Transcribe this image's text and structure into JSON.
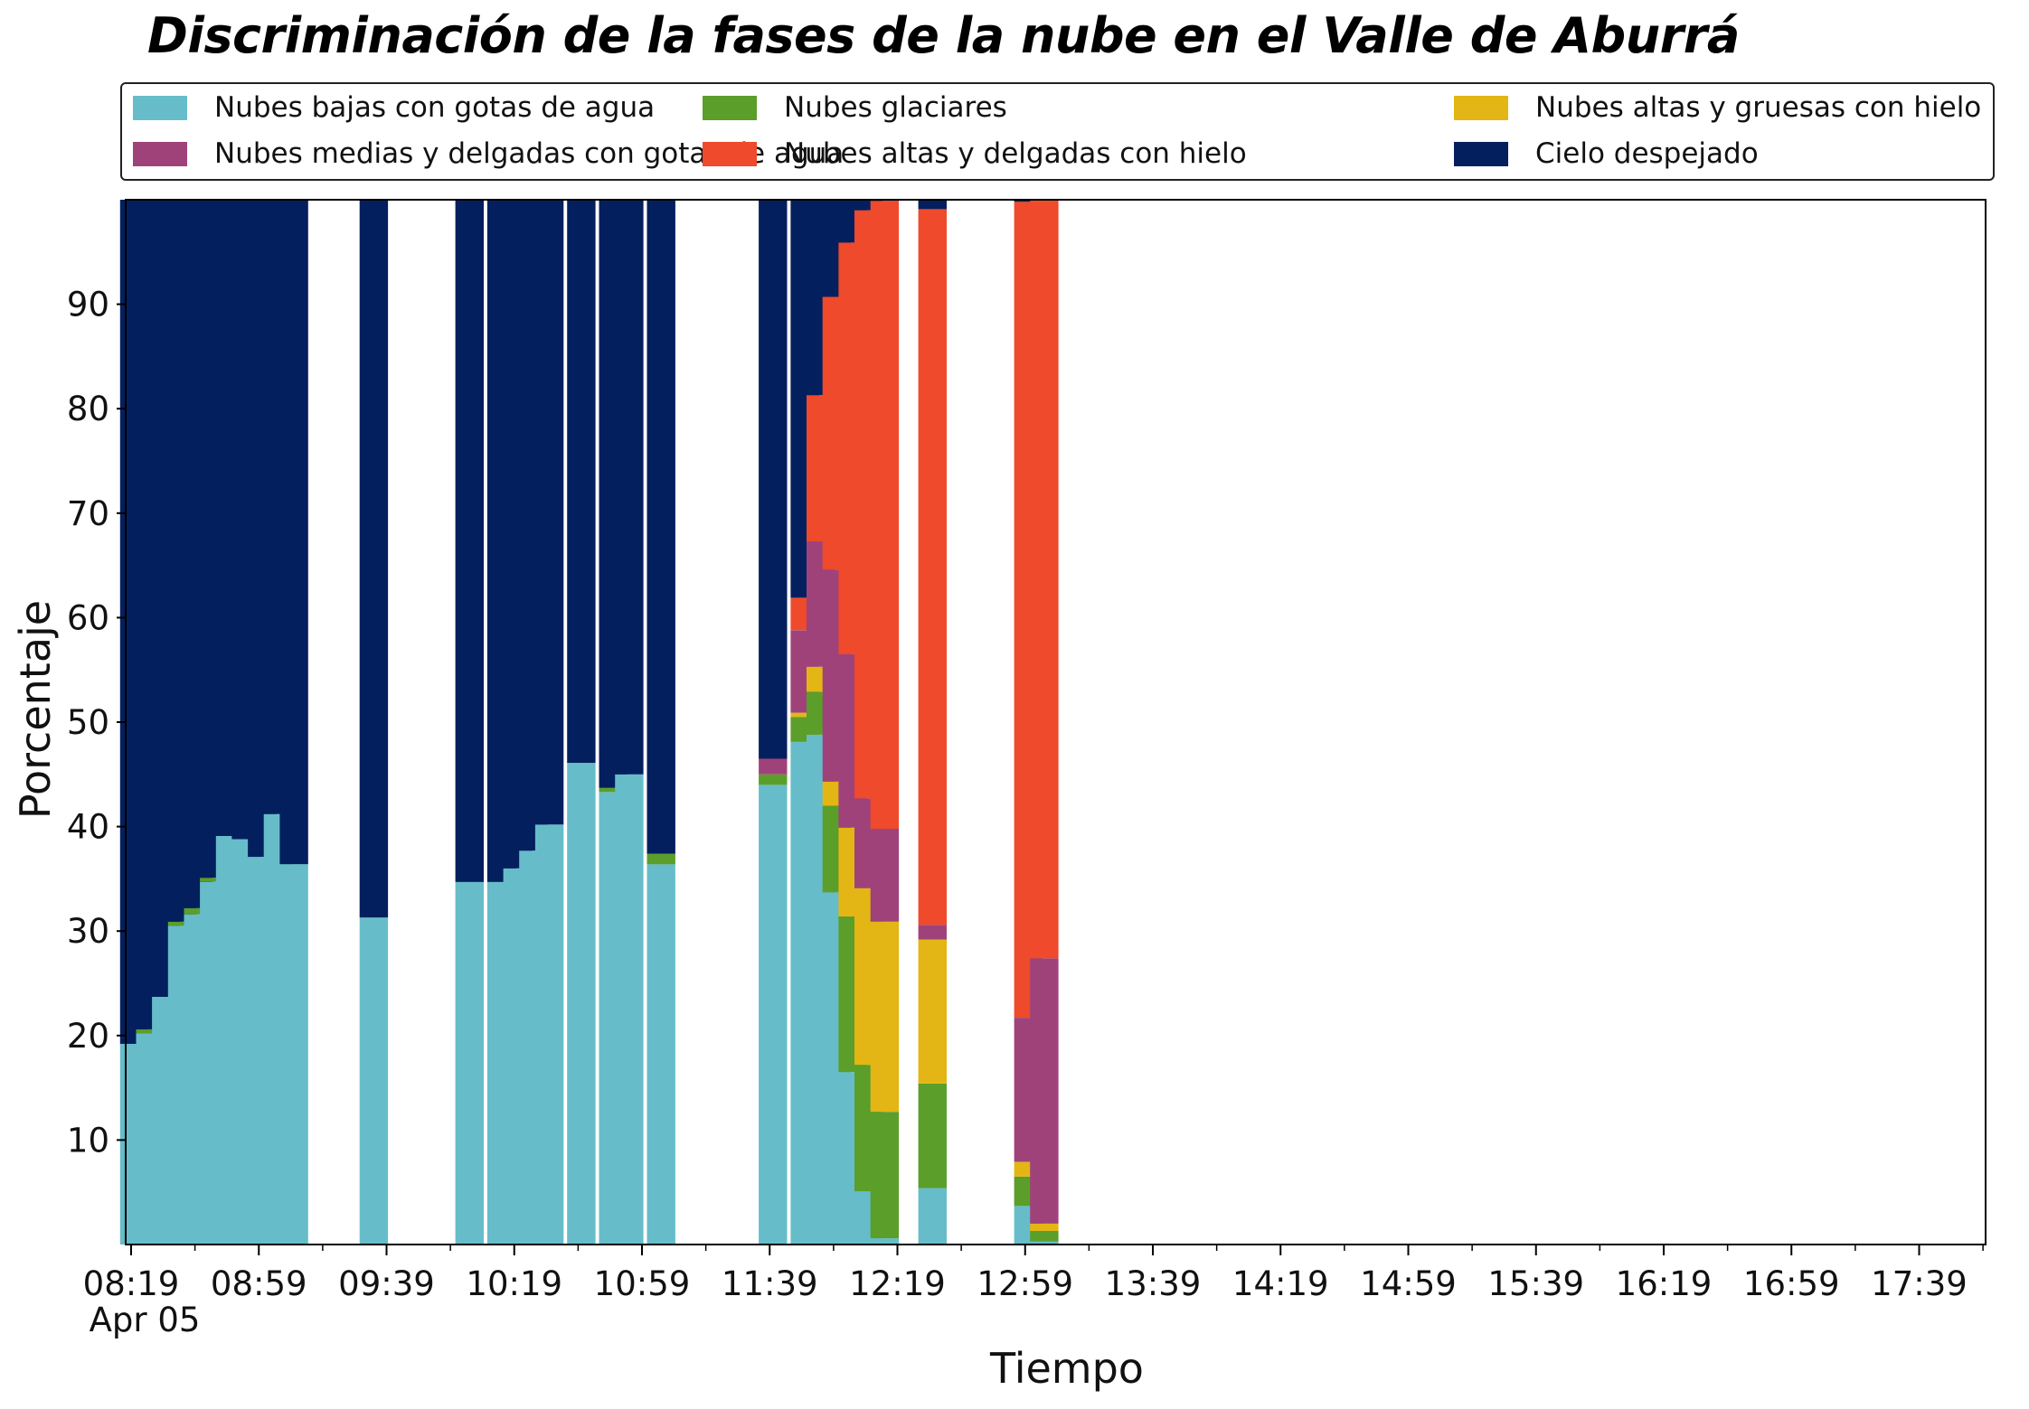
{
  "chart_data": {
    "type": "bar",
    "stacked": true,
    "title": "Discriminación de la fases de la nube en el Valle de Aburrá",
    "xlabel": "Tiempo",
    "ylabel": "Porcentaje",
    "ylim": [
      0,
      100
    ],
    "yticks": [
      10,
      20,
      30,
      40,
      50,
      60,
      70,
      80,
      90
    ],
    "xticks": [
      "08:19",
      "08:59",
      "09:39",
      "10:19",
      "10:59",
      "11:39",
      "12:19",
      "12:59",
      "13:39",
      "14:19",
      "14:59",
      "15:39",
      "16:19",
      "16:59",
      "17:39"
    ],
    "date_label": "Apr 05",
    "legend_position": "top",
    "grid": false,
    "series": [
      {
        "name": "Nubes bajas con gotas de agua",
        "color": "#66bdc9"
      },
      {
        "name": "Nubes glaciares",
        "color": "#5b9e2a"
      },
      {
        "name": "Nubes altas y gruesas con hielo",
        "color": "#e3b615"
      },
      {
        "name": "Nubes medias y delgadas con gotas de agua",
        "color": "#a0427a"
      },
      {
        "name": "Nubes altas y delgadas con hielo",
        "color": "#ee4a2b"
      },
      {
        "name": "Cielo despejado",
        "color": "#041f5e"
      }
    ],
    "bars": [
      {
        "time": "08:20",
        "values": [
          19.2,
          0,
          0,
          0,
          0,
          80.8
        ]
      },
      {
        "time": "08:25",
        "values": [
          20.2,
          0.4,
          0,
          0,
          0,
          79.4
        ]
      },
      {
        "time": "08:30",
        "values": [
          23.7,
          0,
          0,
          0,
          0,
          76.3
        ]
      },
      {
        "time": "08:35",
        "values": [
          30.5,
          0.4,
          0,
          0,
          0,
          69.1
        ]
      },
      {
        "time": "08:40",
        "values": [
          31.6,
          0.6,
          0,
          0,
          0,
          67.8
        ]
      },
      {
        "time": "08:45",
        "values": [
          34.7,
          0.4,
          0,
          0,
          0,
          64.9
        ]
      },
      {
        "time": "08:50",
        "values": [
          39.1,
          0,
          0,
          0,
          0,
          60.9
        ]
      },
      {
        "time": "08:55",
        "values": [
          38.8,
          0,
          0,
          0,
          0,
          61.2
        ]
      },
      {
        "time": "09:00",
        "values": [
          37.1,
          0,
          0,
          0,
          0,
          62.9
        ]
      },
      {
        "time": "09:05",
        "values": [
          41.2,
          0,
          0,
          0,
          0,
          58.8
        ]
      },
      {
        "time": "09:10",
        "values": [
          36.4,
          0,
          0,
          0,
          0,
          63.6
        ]
      },
      {
        "time": "09:35",
        "values": [
          31.3,
          0,
          0,
          0,
          0,
          68.7
        ]
      },
      {
        "time": "10:05",
        "values": [
          34.7,
          0,
          0,
          0,
          0,
          65.3
        ]
      },
      {
        "time": "10:15",
        "values": [
          34.7,
          0,
          0,
          0,
          0,
          65.3
        ]
      },
      {
        "time": "10:20",
        "values": [
          36.0,
          0,
          0,
          0,
          0,
          64.0
        ]
      },
      {
        "time": "10:25",
        "values": [
          37.7,
          0,
          0,
          0,
          0,
          62.3
        ]
      },
      {
        "time": "10:30",
        "values": [
          40.2,
          0,
          0,
          0,
          0,
          59.8
        ]
      },
      {
        "time": "10:40",
        "values": [
          46.1,
          0,
          0,
          0,
          0,
          53.9
        ]
      },
      {
        "time": "10:50",
        "values": [
          43.3,
          0.4,
          0,
          0,
          0,
          56.3
        ]
      },
      {
        "time": "10:55",
        "values": [
          45.0,
          0,
          0,
          0,
          0,
          55.0
        ]
      },
      {
        "time": "11:05",
        "values": [
          36.4,
          1.0,
          0,
          0,
          0,
          62.6
        ]
      },
      {
        "time": "11:40",
        "values": [
          44.0,
          1.0,
          0,
          1.5,
          0,
          53.5
        ]
      },
      {
        "time": "11:50",
        "values": [
          48.1,
          2.4,
          0.4,
          7.9,
          3.1,
          38.1
        ]
      },
      {
        "time": "11:55",
        "values": [
          48.8,
          4.1,
          2.4,
          12.0,
          14.0,
          18.7
        ]
      },
      {
        "time": "12:00",
        "values": [
          33.7,
          8.3,
          2.3,
          20.3,
          26.1,
          9.3
        ]
      },
      {
        "time": "12:05",
        "values": [
          16.5,
          14.9,
          8.5,
          16.6,
          39.4,
          4.1
        ]
      },
      {
        "time": "12:10",
        "values": [
          5.1,
          12.1,
          16.9,
          8.6,
          56.3,
          1.0
        ]
      },
      {
        "time": "12:15",
        "values": [
          0.6,
          12.1,
          18.2,
          8.9,
          60.1,
          0.1
        ]
      },
      {
        "time": "12:30",
        "values": [
          5.4,
          10.0,
          13.8,
          1.4,
          68.5,
          0.9
        ]
      },
      {
        "time": "13:00",
        "values": [
          3.7,
          2.8,
          1.4,
          13.8,
          78.1,
          0.2
        ]
      },
      {
        "time": "13:05",
        "values": [
          0.3,
          1.0,
          0.7,
          25.4,
          72.6,
          0
        ]
      }
    ]
  }
}
